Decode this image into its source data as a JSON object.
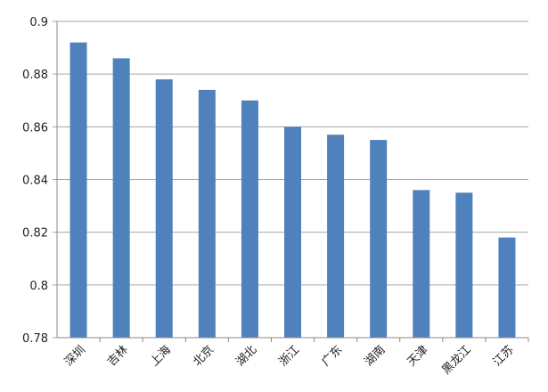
{
  "chart_data": {
    "type": "bar",
    "title": "",
    "xlabel": "",
    "ylabel": "",
    "categories": [
      "深圳",
      "吉林",
      "上海",
      "北京",
      "湖北",
      "浙江",
      "广东",
      "湖南",
      "天津",
      "黑龙江",
      "江苏"
    ],
    "values": [
      0.892,
      0.886,
      0.878,
      0.874,
      0.87,
      0.86,
      0.857,
      0.855,
      0.836,
      0.835,
      0.818
    ],
    "ylim": [
      0.78,
      0.9
    ],
    "yticks": [
      "0.78",
      "0.8",
      "0.82",
      "0.84",
      "0.86",
      "0.88",
      "0.9"
    ],
    "grid": true,
    "legend": "none",
    "bar_color": "#4F81BD",
    "grid_color": "#A6A6A6"
  }
}
